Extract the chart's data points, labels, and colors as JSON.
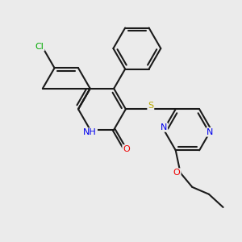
{
  "background_color": "#ebebeb",
  "bond_color": "#1a1a1a",
  "atom_colors": {
    "Cl": "#00aa00",
    "N": "#0000ee",
    "O": "#ee0000",
    "S": "#bbaa00",
    "C": "#1a1a1a"
  },
  "figsize": [
    3.0,
    3.0
  ],
  "dpi": 100,
  "xlim": [
    0,
    10
  ],
  "ylim": [
    0,
    10
  ]
}
